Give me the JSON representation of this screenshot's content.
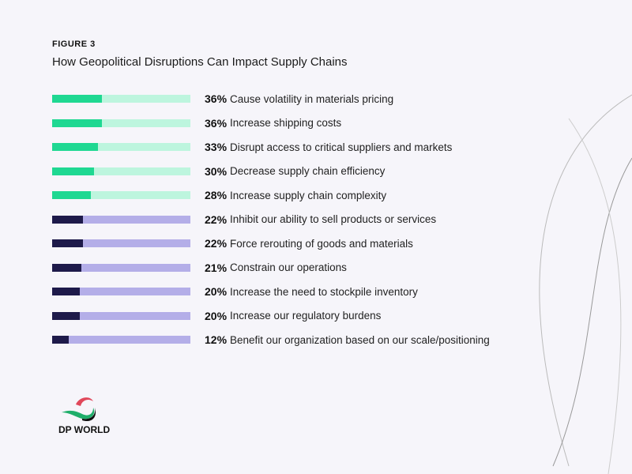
{
  "figure_label": "FIGURE 3",
  "chart_data": {
    "type": "bar",
    "orientation": "horizontal",
    "title": "How Geopolitical Disruptions Can Impact Supply Chains",
    "xlim": [
      0,
      100
    ],
    "categories": [
      "Cause volatility in materials pricing",
      "Increase shipping costs",
      "Disrupt access to critical suppliers and markets",
      "Decrease supply chain efficiency",
      "Increase supply chain complexity",
      "Inhibit our ability to sell products or services",
      "Force rerouting of goods and materials",
      "Constrain our operations",
      "Increase the need to stockpile inventory",
      "Increase our regulatory burdens",
      "Benefit our organization based on our scale/positioning"
    ],
    "values": [
      36,
      36,
      33,
      30,
      28,
      22,
      22,
      21,
      20,
      20,
      12
    ],
    "value_labels": [
      "36%",
      "36%",
      "33%",
      "30%",
      "28%",
      "22%",
      "22%",
      "21%",
      "20%",
      "20%",
      "12%"
    ],
    "colors": {
      "top_fill": "#1fd892",
      "top_track": "#bdf5de",
      "other_fill": "#1e1a4a",
      "other_track": "#b4aee8"
    },
    "highlighted_count": 5
  },
  "logo": {
    "text": "DP WORLD"
  }
}
